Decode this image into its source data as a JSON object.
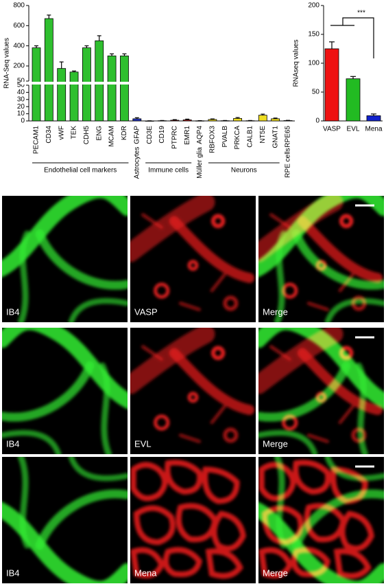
{
  "chart_data": [
    {
      "type": "bar",
      "y_label": "RNA-Seq values",
      "categories": [
        "PECAM1",
        "CD34",
        "vWF",
        "TEK",
        "CDH5",
        "ENG",
        "MCAM",
        "KDR",
        "GFAP",
        "CD3E",
        "CD19",
        "PTPRC",
        "EMR1",
        "AQP4",
        "RBFOX3",
        "PVALB",
        "PRKCA",
        "CALB1",
        "NT5E",
        "GNAT1",
        "RPE65"
      ],
      "values": [
        380,
        670,
        175,
        140,
        380,
        450,
        300,
        300,
        3,
        0,
        0.3,
        1,
        1.5,
        0.2,
        2,
        0.3,
        3.5,
        0.3,
        8,
        3,
        0.5
      ],
      "errors": [
        20,
        35,
        65,
        10,
        20,
        50,
        20,
        20,
        1.5,
        0.2,
        0.3,
        0.8,
        1,
        0.2,
        0.8,
        0.3,
        1.2,
        0.3,
        1.5,
        1,
        0.3
      ],
      "colors": [
        "#2fbf2f",
        "#2fbf2f",
        "#2fbf2f",
        "#2fbf2f",
        "#2fbf2f",
        "#2fbf2f",
        "#2fbf2f",
        "#2fbf2f",
        "#2233bb",
        "#cc2222",
        "#cc2222",
        "#cc2222",
        "#cc2222",
        "#8833aa",
        "#eedd22",
        "#eedd22",
        "#eedd22",
        "#eedd22",
        "#eedd22",
        "#eedd22",
        "#888888"
      ],
      "axis_segments": [
        {
          "ylim": [
            0,
            50
          ],
          "yticks": [
            0,
            10,
            20,
            30,
            40,
            50
          ]
        },
        {
          "ylim": [
            50,
            800
          ],
          "yticks": [
            50,
            200,
            400,
            600,
            800
          ]
        }
      ],
      "groups": [
        {
          "label": "Endothelial cell markers",
          "count": 8
        },
        {
          "label": "Astrocytes",
          "count": 1
        },
        {
          "label": "Immune cells",
          "count": 4
        },
        {
          "label": "Müller glia",
          "count": 1
        },
        {
          "label": "Neurons",
          "count": 6
        },
        {
          "label": "RPE cells",
          "count": 1
        }
      ]
    },
    {
      "type": "bar",
      "y_label": "RNAseq values",
      "categories": [
        "VASP",
        "EVL",
        "Mena"
      ],
      "values": [
        125,
        73,
        9
      ],
      "errors": [
        12,
        4,
        3
      ],
      "colors": [
        "#ee1111",
        "#22bb22",
        "#1122cc"
      ],
      "ylim": [
        0,
        200
      ],
      "yticks": [
        0,
        50,
        100,
        150,
        200
      ],
      "annotation": "***"
    }
  ],
  "image_panels": [
    [
      "IB4",
      "VASP",
      "Merge"
    ],
    [
      "IB4",
      "EVL",
      "Merge"
    ],
    [
      "IB4",
      "Mena",
      "Merge"
    ]
  ]
}
